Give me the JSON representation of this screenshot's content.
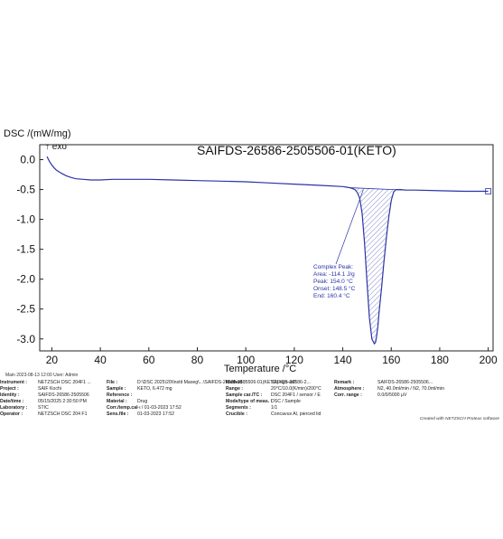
{
  "chart_data": {
    "type": "line",
    "title": "SAIFDS-26586-2505506-01(KETO)",
    "ylabel": "DSC /(mW/mg)",
    "exo_label": "↑ exo",
    "xlabel": "Temperature /°C",
    "xlim": [
      15,
      202
    ],
    "ylim": [
      -3.2,
      0.25
    ],
    "xticks": [
      20,
      40,
      60,
      80,
      100,
      120,
      140,
      160,
      180,
      200
    ],
    "yticks": [
      0.0,
      -0.5,
      -1.0,
      -1.5,
      -2.0,
      -2.5,
      -3.0
    ],
    "ytick_labels": [
      "0.0",
      "-0.5",
      "-1.0",
      "-1.5",
      "-2.0",
      "-2.5",
      "-3.0"
    ],
    "grid": false,
    "line_color": "#2b33a6",
    "series": [
      {
        "x": [
          18,
          19,
          20,
          21,
          22,
          24,
          26,
          28,
          30,
          33,
          36,
          40,
          45,
          50,
          60,
          70,
          80,
          90,
          100,
          110,
          120,
          130,
          140,
          143,
          145,
          146,
          147,
          148,
          149,
          150,
          151,
          152,
          153,
          153.5,
          154,
          154.5,
          155,
          156,
          157,
          158,
          159,
          160,
          161,
          162,
          164,
          166,
          170,
          180,
          190,
          200
        ],
        "y": [
          0.05,
          -0.03,
          -0.09,
          -0.14,
          -0.18,
          -0.23,
          -0.27,
          -0.3,
          -0.32,
          -0.33,
          -0.34,
          -0.34,
          -0.33,
          -0.33,
          -0.33,
          -0.34,
          -0.35,
          -0.36,
          -0.37,
          -0.39,
          -0.41,
          -0.43,
          -0.45,
          -0.47,
          -0.5,
          -0.55,
          -0.65,
          -0.9,
          -1.4,
          -2.05,
          -2.65,
          -3.0,
          -3.08,
          -3.06,
          -2.95,
          -2.78,
          -2.55,
          -2.15,
          -1.7,
          -1.3,
          -0.95,
          -0.68,
          -0.54,
          -0.5,
          -0.5,
          -0.51,
          -0.51,
          -0.52,
          -0.53,
          -0.53
        ]
      }
    ],
    "baseline": {
      "x": [
        143,
        166
      ],
      "y": [
        -0.47,
        -0.51
      ]
    },
    "annotation": {
      "title": "Complex Peak:",
      "lines": [
        "Area:   -114.1 J/g",
        "Peak:    154.0 °C",
        "Onset:   148.5 °C",
        "End:     160.4 °C"
      ]
    },
    "end_marker": {
      "x": 200,
      "y": -0.53
    }
  },
  "footer_top": {
    "main": "Main    2023-08-13 12:00    User: Admin"
  },
  "footer_rows": [
    [
      {
        "k": "Instrument :",
        "v": "NETZSCH DSC 204F1 ..."
      },
      {
        "k": "File :",
        "v": "D:\\DSC 2025\\20\\Instit Maxeg\\...\\SAIFDS-26586-2505506-01(KETO).ngb-ad7"
      },
      {
        "k": "Method :",
        "v": "SAIFDS-26586-2..."
      },
      {
        "k": "Remark :",
        "v": "SAIFDS-26586-2505506..."
      }
    ],
    [
      {
        "k": "Project :",
        "v": "SAIF Kochi"
      },
      {
        "k": "Sample :",
        "v": "KETO, 6.472 mg"
      },
      {
        "k": "Range :",
        "v": "20°C/10.0(K/min)/200°C"
      },
      {
        "k": "Atmosphere :",
        "v": "N2, 40.0ml/min / N2, 70.0ml/min"
      }
    ],
    [
      {
        "k": "Identity :",
        "v": "SAIFDS-26586-2505506"
      },
      {
        "k": "Reference :",
        "v": ""
      },
      {
        "k": "Sample car./TC :",
        "v": "DSC 204F1 / sensor / E"
      },
      {
        "k": "Corr. range :",
        "v": "0.0/0/5000 µV"
      }
    ],
    [
      {
        "k": "Date/time :",
        "v": "05/15/2025 2:30:50 PM"
      },
      {
        "k": "Material :",
        "v": "Drug"
      },
      {
        "k": "Mode/type of meas. :",
        "v": "DSC / Sample"
      },
      {
        "k": "",
        "v": ""
      }
    ],
    [
      {
        "k": "Laboratory :",
        "v": "STIC"
      },
      {
        "k": "Corr./temp.cal :",
        "v": "-- / 01-03-2023 17:52"
      },
      {
        "k": "Segments :",
        "v": "1/1"
      },
      {
        "k": "",
        "v": ""
      }
    ],
    [
      {
        "k": "Operator :",
        "v": "NETZSCH DSC 204 F1"
      },
      {
        "k": "Sens.file :",
        "v": "01-03-2023 17:52"
      },
      {
        "k": "Crucible :",
        "v": "Concavus Al, pierced lid"
      },
      {
        "k": "",
        "v": ""
      }
    ]
  ],
  "created_with": "Created with NETZSCH Proteus software"
}
